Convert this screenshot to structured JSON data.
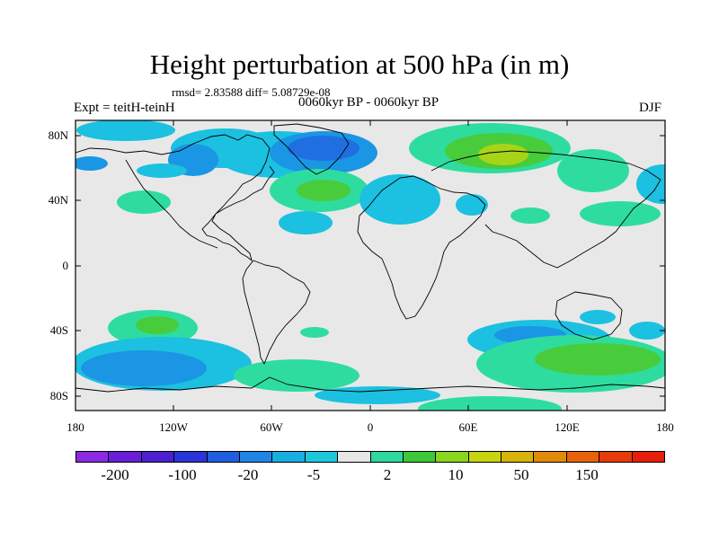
{
  "title": "Height perturbation at 500 hPa (in m)",
  "stats": "rmsd= 2.83588 diff= 5.08729e-08",
  "period": "0060kyr BP - 0060kyr BP",
  "expt": "Expt = teitH-teinH",
  "season": "DJF",
  "lat_labels": [
    "80N",
    "40N",
    "0",
    "40S",
    "80S"
  ],
  "lon_labels": [
    "180",
    "120W",
    "60W",
    "0",
    "60E",
    "120E",
    "180"
  ],
  "colorbar": {
    "colors": [
      "#8a2be2",
      "#6a1ed8",
      "#4c1fd0",
      "#2a35d6",
      "#1f5ee0",
      "#1f86e6",
      "#1aaee0",
      "#1dc8dc",
      "#e6e6e6",
      "#2ed8a0",
      "#3ec83a",
      "#8ad61e",
      "#c8d410",
      "#d6b40a",
      "#e08a0a",
      "#e8620a",
      "#e63c0a",
      "#e61e0a"
    ],
    "labels": [
      "-200",
      "-100",
      "-20",
      "-5",
      "2",
      "10",
      "50",
      "150"
    ]
  },
  "field_colors": {
    "ocean": "#e8e8e8",
    "neg_strong": "#1f6fe0",
    "neg_mid": "#1a96e4",
    "neg_light": "#1cc0e0",
    "pos_light": "#2edca0",
    "pos_mid": "#48cc3c",
    "pos_strong": "#a8d418"
  }
}
